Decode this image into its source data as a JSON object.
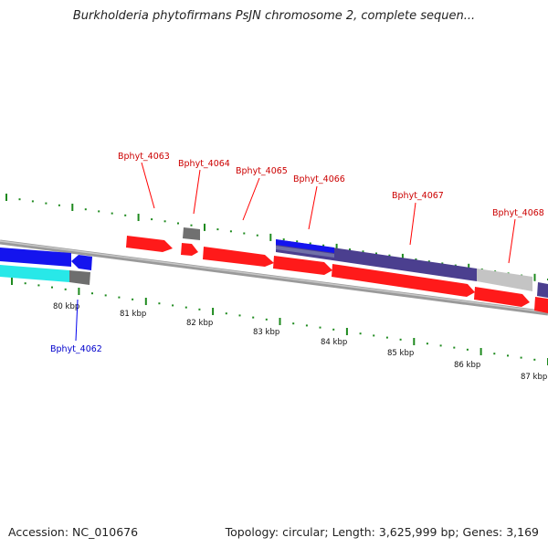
{
  "title": "Burkholderia phytofirmans PsJN chromosome 2, complete sequen...",
  "footer": {
    "accession": "Accession: NC_010676",
    "info": "Topology: circular; Length: 3,625,999 bp; Genes: 3,169"
  },
  "colors": {
    "forward_gene": "#ff1a1a",
    "reverse_gene": "#1010ee",
    "cds_forward": "#4b3f8f",
    "cds_reverse": "#22e5e5",
    "unassigned": "#707070",
    "backbone": "#8a8a8a",
    "tick": "#1e8a1e",
    "gene_label_forward": "#cc0000",
    "gene_label_reverse": "#0000cc"
  },
  "axis_labels": [
    "80 kbp",
    "81 kbp",
    "82 kbp",
    "83 kbp",
    "84 kbp",
    "85 kbp",
    "86 kbp",
    "87 kbp"
  ],
  "gene_labels": [
    {
      "name": "Bphyt_4063",
      "strand": "forward"
    },
    {
      "name": "Bphyt_4064",
      "strand": "forward"
    },
    {
      "name": "Bphyt_4065",
      "strand": "forward"
    },
    {
      "name": "Bphyt_4066",
      "strand": "forward"
    },
    {
      "name": "Bphyt_4067",
      "strand": "forward"
    },
    {
      "name": "Bphyt_4068",
      "strand": "forward"
    },
    {
      "name": "Bphyt_4062",
      "strand": "reverse"
    }
  ]
}
